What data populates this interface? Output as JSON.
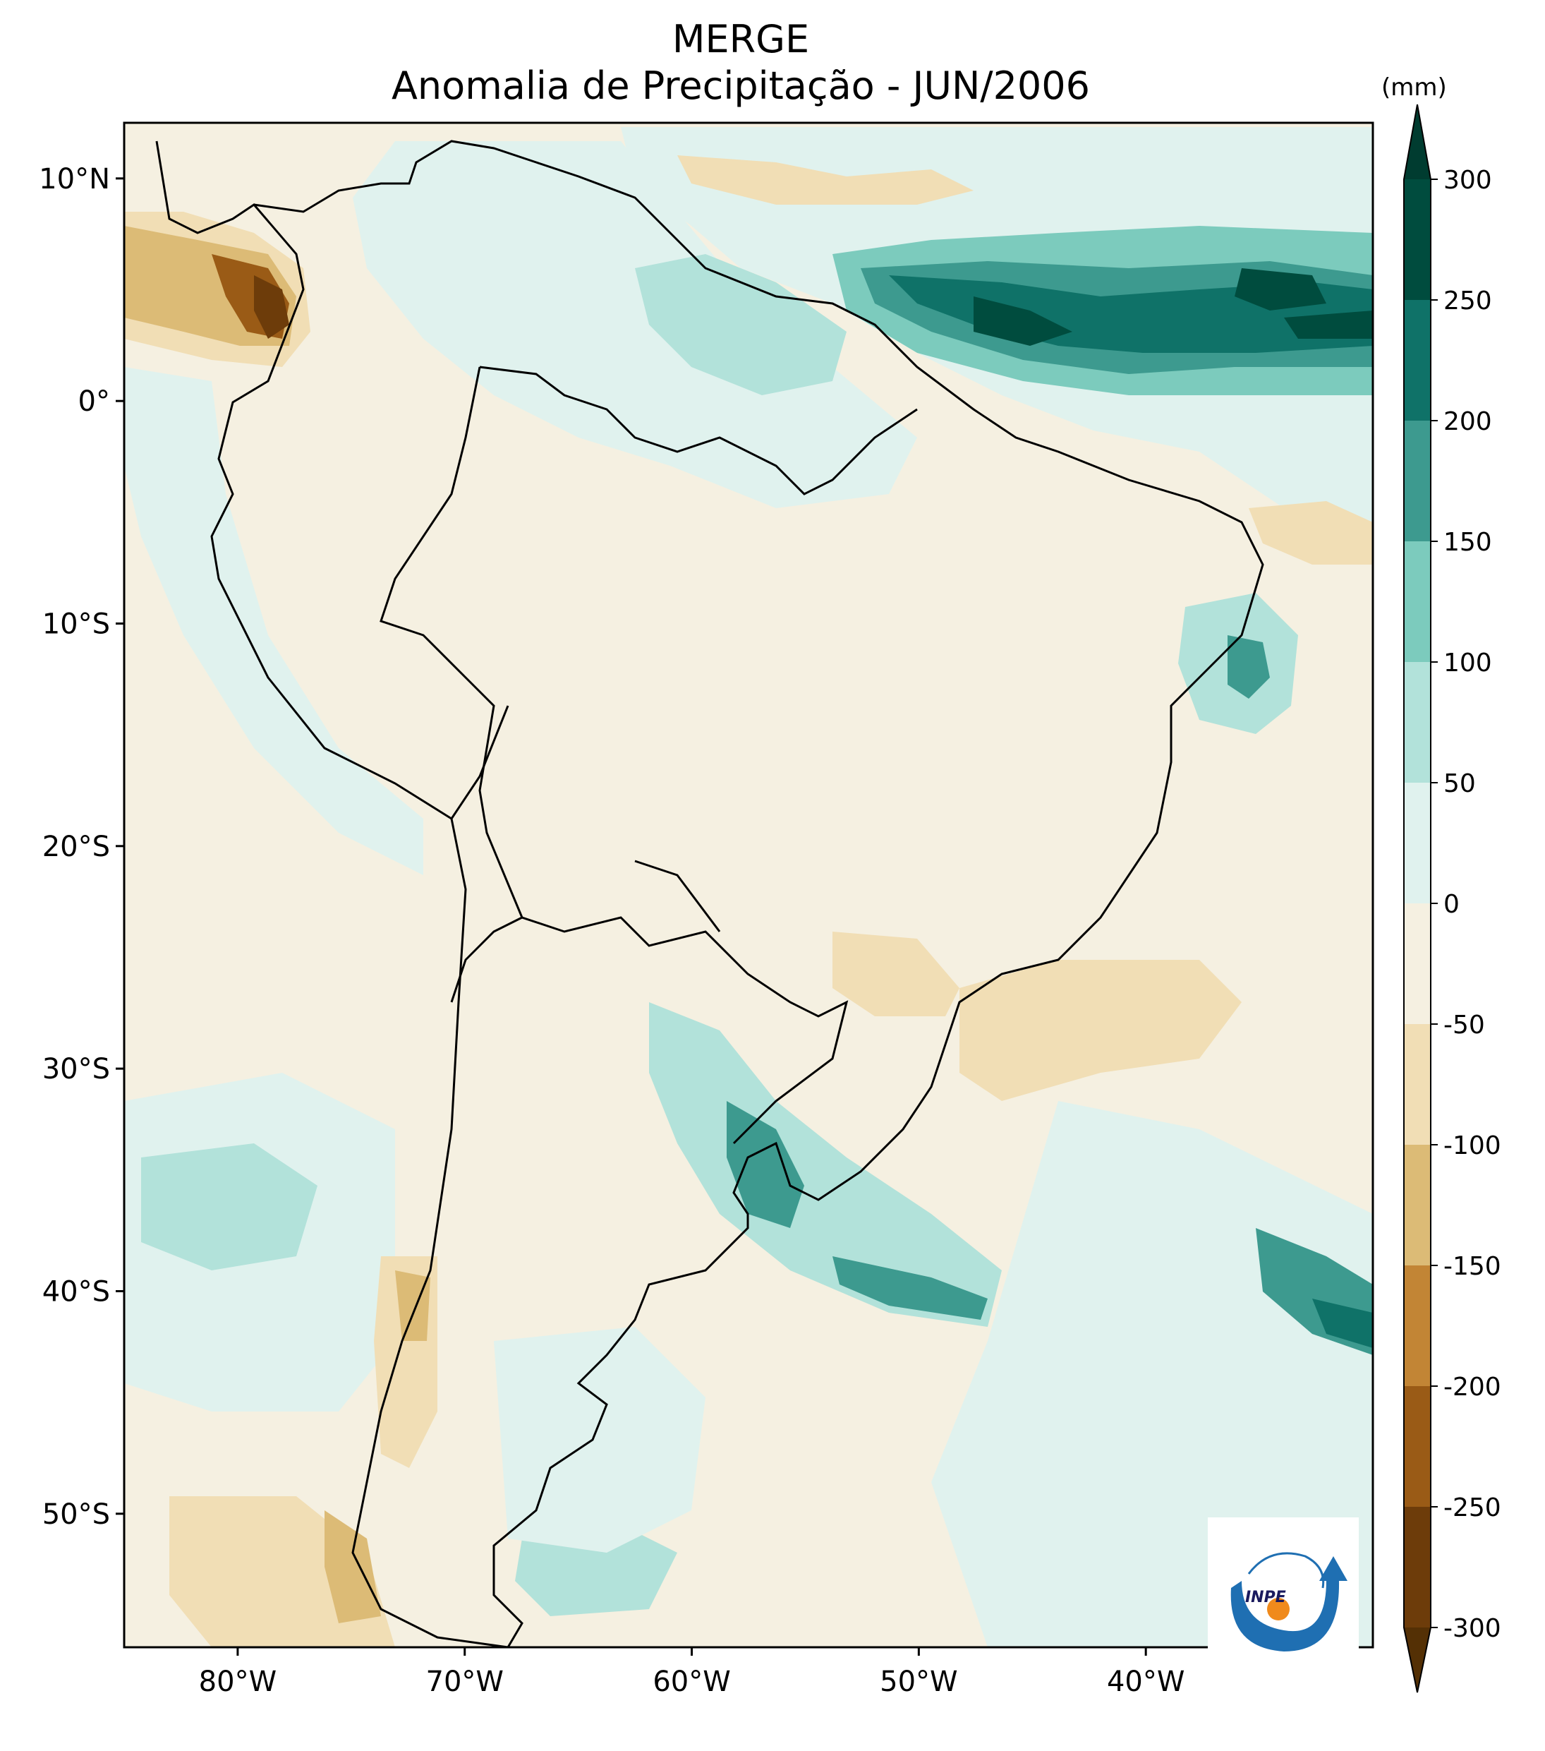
{
  "title": "MERGE",
  "subtitle": "Anomalia de Precipitação - JUN/2006",
  "map": {
    "lon_range": [
      -85,
      -30
    ],
    "lat_range": [
      -56,
      12.5
    ],
    "lon_ticks": [
      {
        "value": -80,
        "label": "80°W"
      },
      {
        "value": -70,
        "label": "70°W"
      },
      {
        "value": -60,
        "label": "60°W"
      },
      {
        "value": -50,
        "label": "50°W"
      },
      {
        "value": -40,
        "label": "40°W"
      }
    ],
    "lat_ticks": [
      {
        "value": 10,
        "label": "10°N"
      },
      {
        "value": 0,
        "label": "0°"
      },
      {
        "value": -10,
        "label": "10°S"
      },
      {
        "value": -20,
        "label": "20°S"
      },
      {
        "value": -30,
        "label": "30°S"
      },
      {
        "value": -40,
        "label": "40°S"
      },
      {
        "value": -50,
        "label": "50°S"
      }
    ]
  },
  "colorbar": {
    "unit": "(mm)",
    "levels": [
      {
        "value": 300,
        "label": "300"
      },
      {
        "value": 250,
        "label": "250"
      },
      {
        "value": 200,
        "label": "200"
      },
      {
        "value": 150,
        "label": "150"
      },
      {
        "value": 100,
        "label": "100"
      },
      {
        "value": 50,
        "label": "50"
      },
      {
        "value": 0,
        "label": "0"
      },
      {
        "value": -50,
        "label": "-50"
      },
      {
        "value": -100,
        "label": "-100"
      },
      {
        "value": -150,
        "label": "-150"
      },
      {
        "value": -200,
        "label": "-200"
      },
      {
        "value": -250,
        "label": "-250"
      },
      {
        "value": -300,
        "label": "-300"
      }
    ],
    "colors": [
      "#004c3e",
      "#0f7268",
      "#3d9a8f",
      "#7ccbbd",
      "#b2e2da",
      "#e0f2ee",
      "#f5f0e1",
      "#f1deb5",
      "#dcbb76",
      "#c28535",
      "#9a5b16",
      "#6d3c0a"
    ],
    "extend_max_color": "#003c30",
    "extend_min_color": "#543005"
  },
  "logo": {
    "text": "INPE"
  }
}
